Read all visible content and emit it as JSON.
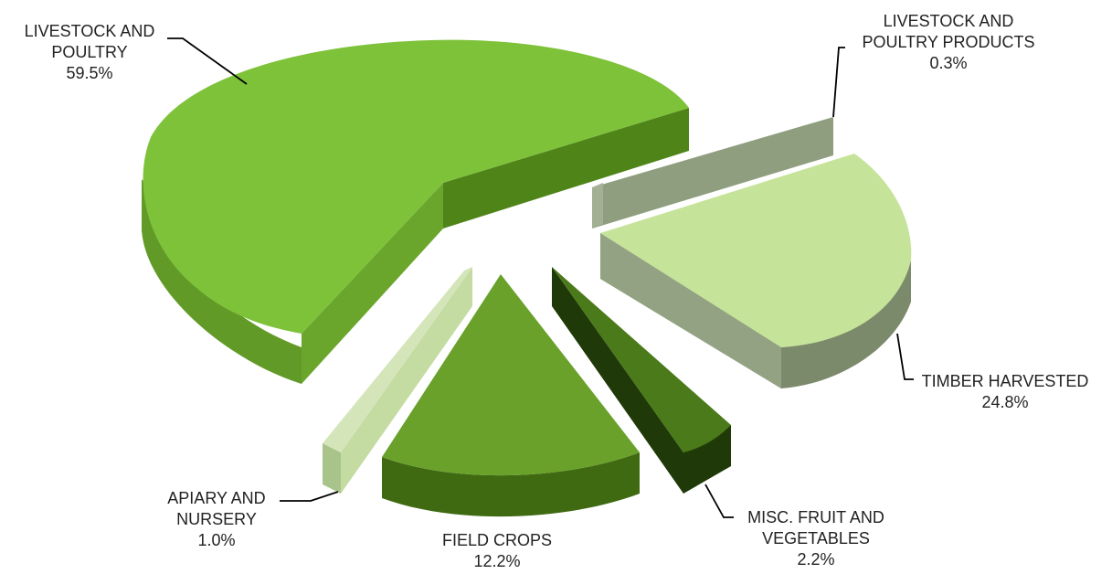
{
  "chart_data": {
    "type": "pie",
    "style": "3d-exploded",
    "slices": [
      {
        "key": "livestock",
        "line1": "LIVESTOCK AND",
        "line2": "POULTRY",
        "pct": "59.5%",
        "value": 59.5,
        "color": "#7ec23a"
      },
      {
        "key": "products",
        "line1": "LIVESTOCK AND",
        "line2": "POULTRY PRODUCTS",
        "pct": "0.3%",
        "value": 0.3,
        "color": "#8f9e7e"
      },
      {
        "key": "timber",
        "line1": "TIMBER HARVESTED",
        "line2": "",
        "pct": "24.8%",
        "value": 24.8,
        "color": "#c6e39a"
      },
      {
        "key": "misc",
        "line1": "MISC. FRUIT AND",
        "line2": "VEGETABLES",
        "pct": "2.2%",
        "value": 2.2,
        "color": "#4a7a19"
      },
      {
        "key": "field",
        "line1": "FIELD CROPS",
        "line2": "",
        "pct": "12.2%",
        "value": 12.2,
        "color": "#6aa12a"
      },
      {
        "key": "apiary",
        "line1": "APIARY AND",
        "line2": "NURSERY",
        "pct": "1.0%",
        "value": 1.0,
        "color": "#c4dba2"
      }
    ]
  }
}
